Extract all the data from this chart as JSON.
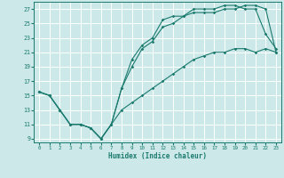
{
  "xlabel": "Humidex (Indice chaleur)",
  "bg_color": "#cce8e8",
  "grid_color": "#ffffff",
  "line_color": "#1a7a6e",
  "xlim": [
    -0.5,
    23.5
  ],
  "ylim": [
    8.5,
    28.0
  ],
  "xticks": [
    0,
    1,
    2,
    3,
    4,
    5,
    6,
    7,
    8,
    9,
    10,
    11,
    12,
    13,
    14,
    15,
    16,
    17,
    18,
    19,
    20,
    21,
    22,
    23
  ],
  "yticks": [
    9,
    11,
    13,
    15,
    17,
    19,
    21,
    23,
    25,
    27
  ],
  "series1_x": [
    0,
    1,
    2,
    3,
    4,
    5,
    6,
    7,
    8,
    9,
    10,
    11,
    12,
    13,
    14,
    15,
    16,
    17,
    18,
    19,
    20,
    21,
    22,
    23
  ],
  "series1_y": [
    15.5,
    15,
    13,
    11,
    11,
    10.5,
    9,
    11,
    16,
    20,
    22,
    23,
    25.5,
    26,
    26,
    27,
    27,
    27,
    27.5,
    27.5,
    27,
    27,
    23.5,
    21.5
  ],
  "series2_x": [
    0,
    1,
    2,
    3,
    4,
    5,
    6,
    7,
    8,
    9,
    10,
    11,
    12,
    13,
    14,
    15,
    16,
    17,
    18,
    19,
    20,
    21,
    22,
    23
  ],
  "series2_y": [
    15.5,
    15,
    13,
    11,
    11,
    10.5,
    9,
    11,
    16,
    19,
    21.5,
    22.5,
    24.5,
    25,
    26,
    26.5,
    26.5,
    26.5,
    27,
    27,
    27.5,
    27.5,
    27,
    21
  ],
  "series3_x": [
    0,
    1,
    2,
    3,
    4,
    5,
    6,
    7,
    8,
    9,
    10,
    11,
    12,
    13,
    14,
    15,
    16,
    17,
    18,
    19,
    20,
    21,
    22,
    23
  ],
  "series3_y": [
    15.5,
    15,
    13,
    11,
    11,
    10.5,
    9,
    11,
    13,
    14,
    15,
    16,
    17,
    18,
    19,
    20,
    20.5,
    21,
    21,
    21.5,
    21.5,
    21,
    21.5,
    21
  ]
}
